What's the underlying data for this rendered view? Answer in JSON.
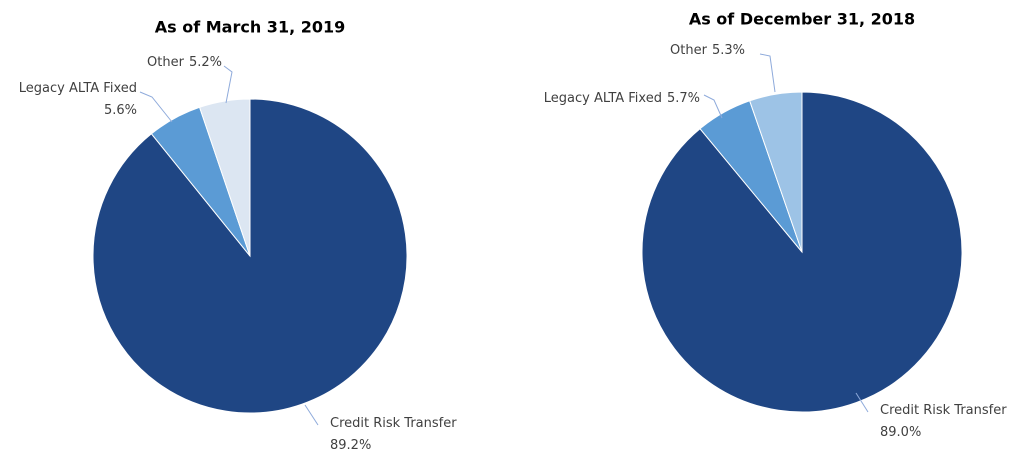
{
  "chart_data": [
    {
      "type": "pie",
      "title": "As of March 31, 2019",
      "categories": [
        "Credit Risk Transfer",
        "Legacy ALTA Fixed",
        "Other"
      ],
      "values": [
        89.2,
        5.6,
        5.2
      ],
      "value_labels": [
        "89.2%",
        "5.6%",
        "5.2%"
      ],
      "colors": [
        "#1f4684",
        "#5b9bd5",
        "#dce6f2"
      ]
    },
    {
      "type": "pie",
      "title": "As of December 31, 2018",
      "categories": [
        "Credit Risk Transfer",
        "Legacy ALTA Fixed",
        "Other"
      ],
      "values": [
        89.0,
        5.7,
        5.3
      ],
      "value_labels": [
        "89.0%",
        "5.7%",
        "5.3%"
      ],
      "colors": [
        "#1f4684",
        "#5b9bd5",
        "#9dc3e6"
      ]
    }
  ]
}
